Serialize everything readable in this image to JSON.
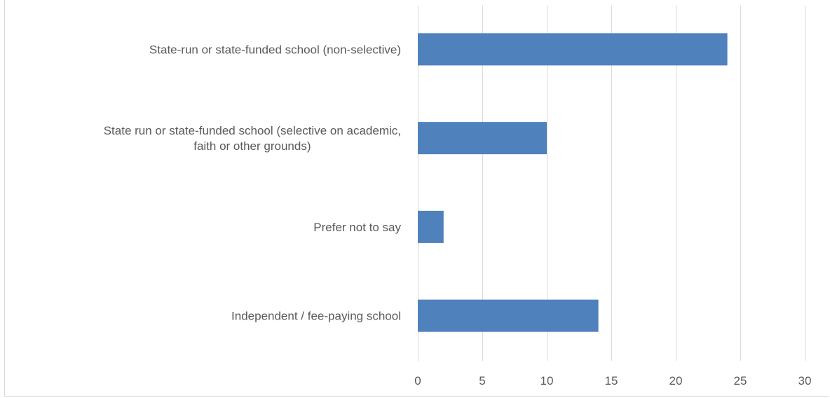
{
  "chart_data": {
    "type": "bar",
    "orientation": "horizontal",
    "title": "",
    "xlabel": "",
    "ylabel": "",
    "categories": [
      [
        "State-run or state-funded school (non-selective)"
      ],
      [
        "State run or state-funded school (selective on academic,",
        "faith or other grounds)"
      ],
      [
        "Prefer not to say"
      ],
      [
        "Independent / fee-paying school"
      ]
    ],
    "values": [
      24,
      10,
      2,
      14
    ],
    "xlim": [
      0,
      30
    ],
    "ticks": [
      "0",
      "5",
      "10",
      "15",
      "20",
      "25",
      "30"
    ],
    "grid": true,
    "legend": "none",
    "bar_color": "#4f81bd"
  }
}
